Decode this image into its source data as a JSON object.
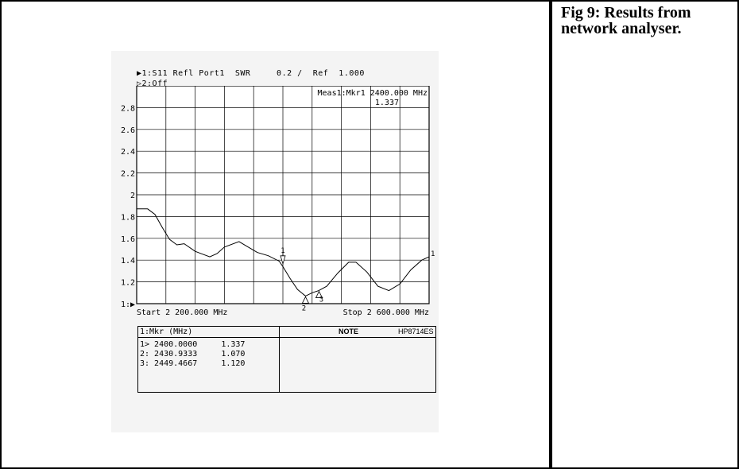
{
  "caption": "Fig 9: Results from network analyser.",
  "header": {
    "line1": "▶1:S11 Refl Port1  SWR     0.2 /  Ref  1.000",
    "line2": "▷2:Off",
    "meas_label": "Meas1:Mkr1 2400.000 MHz",
    "meas_value": "1.337"
  },
  "chart_data": {
    "type": "line",
    "title": "",
    "xlabel": "",
    "ylabel": "",
    "x_start_label": "Start 2 200.000 MHz",
    "x_stop_label": "Stop 2 600.000 MHz",
    "xlim": [
      2200,
      2600
    ],
    "ylim": [
      1.0,
      3.0
    ],
    "y_ticks": [
      1.0,
      1.2,
      1.4,
      1.6,
      1.8,
      2.0,
      2.2,
      2.4,
      2.6,
      2.8
    ],
    "y_tick_labels": [
      "1:▶",
      "1.2",
      "1.4",
      "1.6",
      "1.8",
      "2",
      "2.2",
      "2.4",
      "2.6",
      "2.8"
    ],
    "grid": true,
    "series": [
      {
        "x": [
          2200,
          2215,
          2225,
          2235,
          2245,
          2255,
          2265,
          2280,
          2300,
          2310,
          2320,
          2340,
          2350,
          2365,
          2380,
          2395,
          2400,
          2410,
          2420,
          2431,
          2440,
          2449,
          2460,
          2475,
          2490,
          2500,
          2515,
          2530,
          2545,
          2560,
          2575,
          2590,
          2600
        ],
        "y": [
          1.87,
          1.87,
          1.82,
          1.7,
          1.59,
          1.54,
          1.55,
          1.48,
          1.43,
          1.46,
          1.52,
          1.57,
          1.53,
          1.47,
          1.44,
          1.39,
          1.34,
          1.23,
          1.13,
          1.07,
          1.1,
          1.12,
          1.16,
          1.28,
          1.38,
          1.38,
          1.29,
          1.16,
          1.12,
          1.18,
          1.31,
          1.4,
          1.43
        ]
      }
    ],
    "markers": [
      {
        "label": "1",
        "x": 2400.0,
        "y": 1.337
      },
      {
        "label": "2",
        "x": 2430.9333,
        "y": 1.07
      },
      {
        "label": "3",
        "x": 2449.4667,
        "y": 1.12
      }
    ],
    "end_marker_label": "1"
  },
  "marker_table": {
    "header": "1:Mkr (MHz)",
    "rows": [
      "1> 2400.0000     1.337",
      "2: 2430.9333     1.070",
      "3: 2449.4667     1.120"
    ],
    "note": "NOTE",
    "model": "HP8714ES"
  }
}
